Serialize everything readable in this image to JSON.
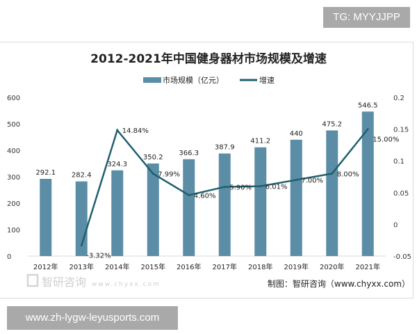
{
  "watermark_top": "TG: MYYJJPP",
  "footer_url": "www.zh-lygw-leyusports.com",
  "source": "制图：智研咨询（www.chyxx.com）",
  "logo_text": "智研咨询",
  "logo_url": "www.chyxx.com",
  "chart_data": {
    "type": "bar+line",
    "title": "2012-2021年中国健身器材市场规模及增速",
    "categories": [
      "2012年",
      "2013年",
      "2014年",
      "2015年",
      "2016年",
      "2017年",
      "2018年",
      "2019年",
      "2020年",
      "2021年"
    ],
    "series": [
      {
        "name": "市场规模（亿元）",
        "type": "bar",
        "axis": "left",
        "color": "#5b8ea6",
        "values": [
          292.1,
          282.4,
          324.3,
          350.2,
          366.3,
          387.9,
          411.2,
          440,
          475.2,
          546.5
        ],
        "labels": [
          "292.1",
          "282.4",
          "324.3",
          "350.2",
          "366.3",
          "387.9",
          "411.2",
          "440",
          "475.2",
          "546.5"
        ]
      },
      {
        "name": "增速",
        "type": "line",
        "axis": "right",
        "color": "#1f5f6e",
        "values": [
          null,
          -0.0332,
          0.1484,
          0.0799,
          0.046,
          0.059,
          0.0601,
          0.07,
          0.08,
          0.15
        ],
        "labels": [
          "",
          "-3.32%",
          "14.84%",
          "7.99%",
          "4.60%",
          "5.90%",
          "6.01%",
          "7.00%",
          "8.00%",
          "15.00%"
        ]
      }
    ],
    "y_left": {
      "range": [
        0,
        600
      ],
      "ticks": [
        "0",
        "100",
        "200",
        "300",
        "400",
        "500",
        "600"
      ]
    },
    "y_right": {
      "range": [
        -0.05,
        0.2
      ],
      "ticks": [
        "-0.05",
        "0",
        "0.05",
        "0.1",
        "0.15",
        "0.2"
      ]
    },
    "grid": false,
    "legend": "top"
  }
}
